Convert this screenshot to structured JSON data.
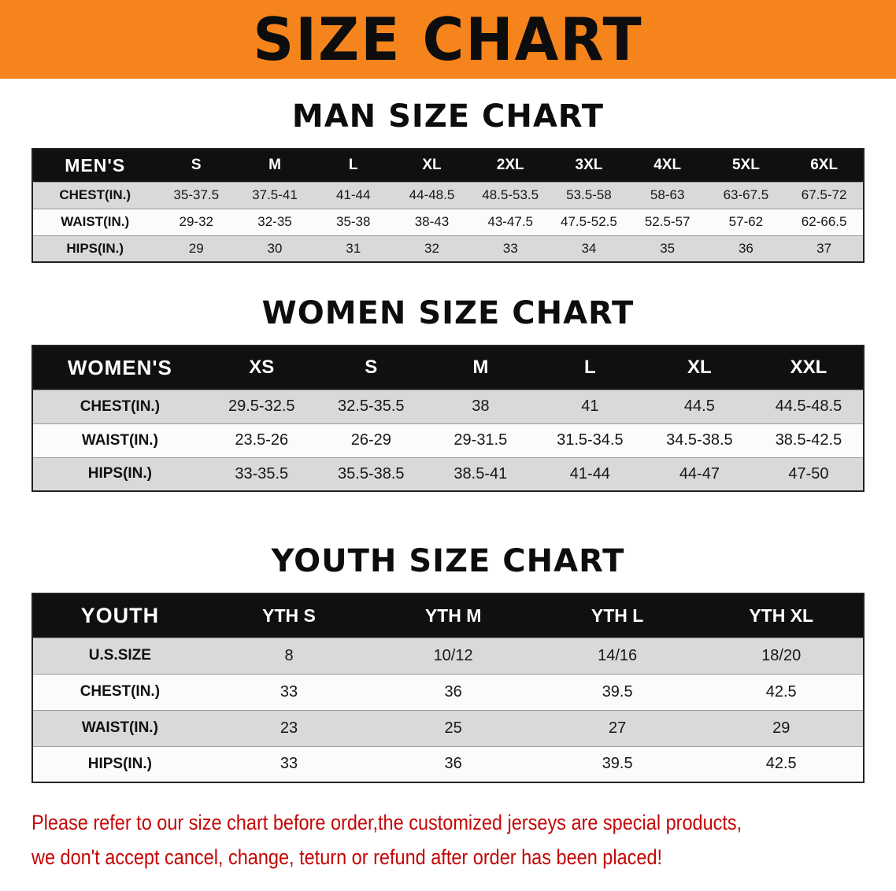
{
  "banner": {
    "title": "SIZE CHART",
    "bg_color": "#F6841C"
  },
  "sections": [
    {
      "heading": "MAN SIZE CHART",
      "table": {
        "header": [
          "MEN'S",
          "S",
          "M",
          "L",
          "XL",
          "2XL",
          "3XL",
          "4XL",
          "5XL",
          "6XL"
        ],
        "rows": [
          {
            "label": "CHEST(IN.)",
            "values": [
              "35-37.5",
              "37.5-41",
              "41-44",
              "44-48.5",
              "48.5-53.5",
              "53.5-58",
              "58-63",
              "63-67.5",
              "67.5-72"
            ]
          },
          {
            "label": "WAIST(IN.)",
            "values": [
              "29-32",
              "32-35",
              "35-38",
              "38-43",
              "43-47.5",
              "47.5-52.5",
              "52.5-57",
              "57-62",
              "62-66.5"
            ]
          },
          {
            "label": "HIPS(IN.)",
            "values": [
              "29",
              "30",
              "31",
              "32",
              "33",
              "34",
              "35",
              "36",
              "37"
            ]
          }
        ]
      }
    },
    {
      "heading": "WOMEN SIZE CHART",
      "table": {
        "header": [
          "WOMEN'S",
          "XS",
          "S",
          "M",
          "L",
          "XL",
          "XXL"
        ],
        "rows": [
          {
            "label": "CHEST(IN.)",
            "values": [
              "29.5-32.5",
              "32.5-35.5",
              "38",
              "41",
              "44.5",
              "44.5-48.5"
            ]
          },
          {
            "label": "WAIST(IN.)",
            "values": [
              "23.5-26",
              "26-29",
              "29-31.5",
              "31.5-34.5",
              "34.5-38.5",
              "38.5-42.5"
            ]
          },
          {
            "label": "HIPS(IN.)",
            "values": [
              "33-35.5",
              "35.5-38.5",
              "38.5-41",
              "41-44",
              "44-47",
              "47-50"
            ]
          }
        ]
      }
    },
    {
      "heading": "YOUTH SIZE CHART",
      "table": {
        "header": [
          "YOUTH",
          "YTH S",
          "YTH M",
          "YTH L",
          "YTH XL"
        ],
        "rows": [
          {
            "label": "U.S.SIZE",
            "values": [
              "8",
              "10/12",
              "14/16",
              "18/20"
            ]
          },
          {
            "label": "CHEST(IN.)",
            "values": [
              "33",
              "36",
              "39.5",
              "42.5"
            ]
          },
          {
            "label": "WAIST(IN.)",
            "values": [
              "23",
              "25",
              "27",
              "29"
            ]
          },
          {
            "label": "HIPS(IN.)",
            "values": [
              "33",
              "36",
              "39.5",
              "42.5"
            ]
          }
        ]
      }
    }
  ],
  "disclaimer": {
    "line1": "Please refer to our size chart before order,the customized jerseys are special products,",
    "line2": "we don't accept cancel, change, teturn or refund after order has been placed!",
    "color": "#c40505"
  }
}
